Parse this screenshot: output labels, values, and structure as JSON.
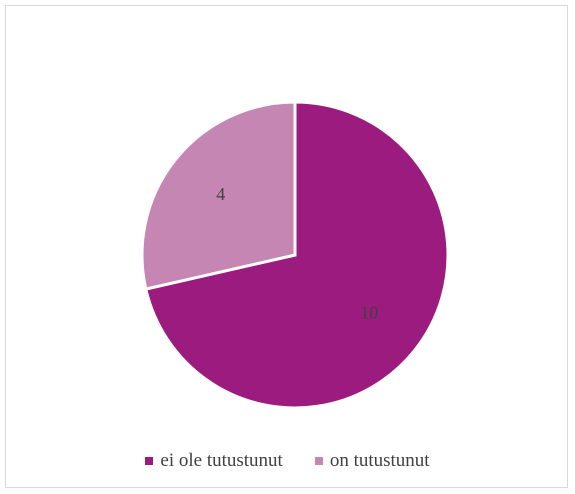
{
  "chart_data": {
    "type": "pie",
    "title": "",
    "categories": [
      "ei ole tutustunut",
      "on tutustunut"
    ],
    "values": [
      10,
      4
    ],
    "data_labels": [
      "10",
      "4"
    ],
    "colors": [
      "#9b1b7e",
      "#c586b4"
    ],
    "legend_position": "bottom"
  },
  "legend": {
    "items": [
      {
        "label": "ei ole tutustunut",
        "color": "#9b1b7e"
      },
      {
        "label": "on tutustunut",
        "color": "#c586b4"
      }
    ]
  }
}
